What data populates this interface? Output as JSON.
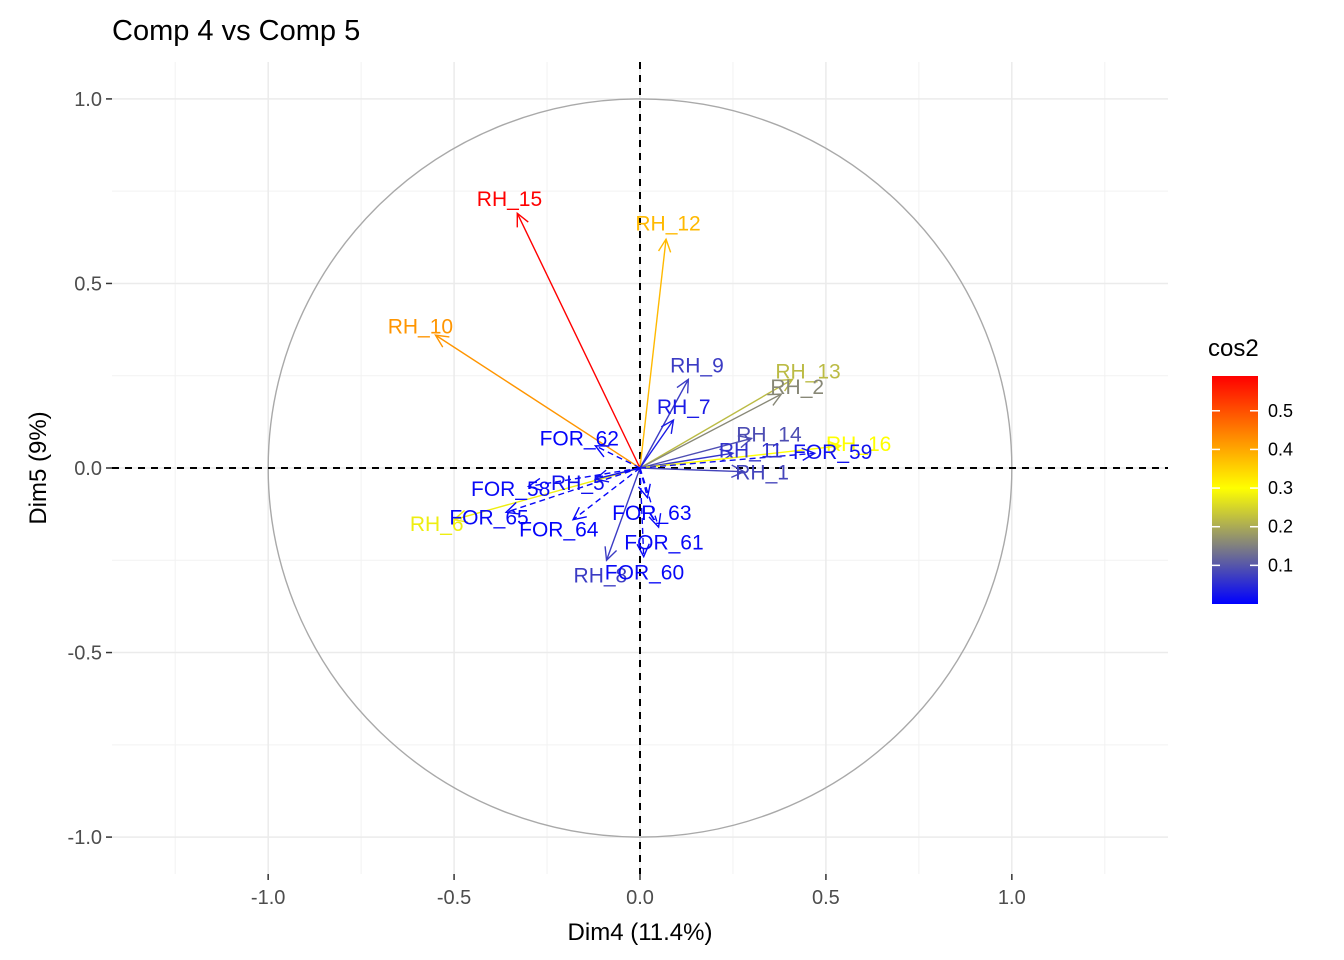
{
  "chart_data": {
    "type": "scatter",
    "subtype": "pca-variable-correlation-circle",
    "title": "Comp 4 vs Comp 5",
    "xlabel": "Dim4 (11.4%)",
    "ylabel": "Dim5 (9%)",
    "xlim": [
      -1.42,
      1.42
    ],
    "ylim": [
      -1.1,
      1.1
    ],
    "x_ticks": [
      -1.0,
      -0.5,
      0.0,
      0.5,
      1.0
    ],
    "x_tick_labels": [
      "-1.0",
      "-0.5",
      "0.0",
      "0.5",
      "1.0"
    ],
    "y_ticks": [
      -1.0,
      -0.5,
      0.0,
      0.5,
      1.0
    ],
    "y_tick_labels": [
      "-1.0",
      "-0.5",
      "0.0",
      "0.5",
      "1.0"
    ],
    "grid": true,
    "unit_circle": true,
    "reference_lines": [
      "x=0 dashed",
      "y=0 dashed"
    ],
    "legend": {
      "title": "cos2",
      "placement": "right",
      "range": [
        0.0,
        0.59
      ],
      "ticks": [
        0.1,
        0.2,
        0.3,
        0.4,
        0.5
      ],
      "tick_labels": [
        "0.1",
        "0.2",
        "0.3",
        "0.4",
        "0.5"
      ],
      "gradient": [
        "#0000ff",
        "#ffff00",
        "#ff0000"
      ],
      "gradient_midpoint": 0.3
    },
    "variables": [
      {
        "name": "RH_15",
        "x": -0.33,
        "y": 0.69,
        "cos2": 0.59,
        "line": "solid"
      },
      {
        "name": "RH_12",
        "x": 0.07,
        "y": 0.62,
        "cos2": 0.38,
        "line": "solid"
      },
      {
        "name": "RH_10",
        "x": -0.55,
        "y": 0.36,
        "cos2": 0.42,
        "line": "solid"
      },
      {
        "name": "RH_9",
        "x": 0.13,
        "y": 0.24,
        "cos2": 0.07,
        "line": "solid"
      },
      {
        "name": "RH_13",
        "x": 0.41,
        "y": 0.24,
        "cos2": 0.22,
        "line": "solid"
      },
      {
        "name": "RH_2",
        "x": 0.38,
        "y": 0.2,
        "cos2": 0.16,
        "line": "solid"
      },
      {
        "name": "RH_7",
        "x": 0.09,
        "y": 0.13,
        "cos2": 0.03,
        "line": "solid"
      },
      {
        "name": "RH_14",
        "x": 0.3,
        "y": 0.08,
        "cos2": 0.09,
        "line": "solid"
      },
      {
        "name": "RH_11",
        "x": 0.25,
        "y": 0.04,
        "cos2": 0.06,
        "line": "solid"
      },
      {
        "name": "RH_16",
        "x": 0.54,
        "y": 0.06,
        "cos2": 0.3,
        "line": "solid"
      },
      {
        "name": "RH_1",
        "x": 0.28,
        "y": -0.01,
        "cos2": 0.08,
        "line": "solid"
      },
      {
        "name": "RH_6",
        "x": -0.5,
        "y": -0.14,
        "cos2": 0.28,
        "line": "solid"
      },
      {
        "name": "RH_5",
        "x": -0.12,
        "y": -0.03,
        "cos2": 0.02,
        "line": "solid"
      },
      {
        "name": "RH_8",
        "x": -0.09,
        "y": -0.25,
        "cos2": 0.07,
        "line": "solid"
      },
      {
        "name": "FOR_59",
        "x": 0.47,
        "y": 0.04,
        "cos2": 0.02,
        "line": "dashed"
      },
      {
        "name": "FOR_62",
        "x": -0.12,
        "y": 0.06,
        "cos2": 0.005,
        "line": "dashed"
      },
      {
        "name": "FOR_58",
        "x": -0.3,
        "y": -0.05,
        "cos2": 0.01,
        "line": "dashed"
      },
      {
        "name": "FOR_63",
        "x": 0.02,
        "y": -0.08,
        "cos2": 0.005,
        "line": "dashed"
      },
      {
        "name": "FOR_65",
        "x": -0.36,
        "y": -0.12,
        "cos2": 0.01,
        "line": "dashed"
      },
      {
        "name": "FOR_61",
        "x": 0.05,
        "y": -0.16,
        "cos2": 0.01,
        "line": "dashed"
      },
      {
        "name": "FOR_64",
        "x": -0.18,
        "y": -0.14,
        "cos2": 0.005,
        "line": "dashed"
      },
      {
        "name": "FOR_60",
        "x": 0.01,
        "y": -0.24,
        "cos2": 0.01,
        "line": "dashed"
      }
    ]
  }
}
